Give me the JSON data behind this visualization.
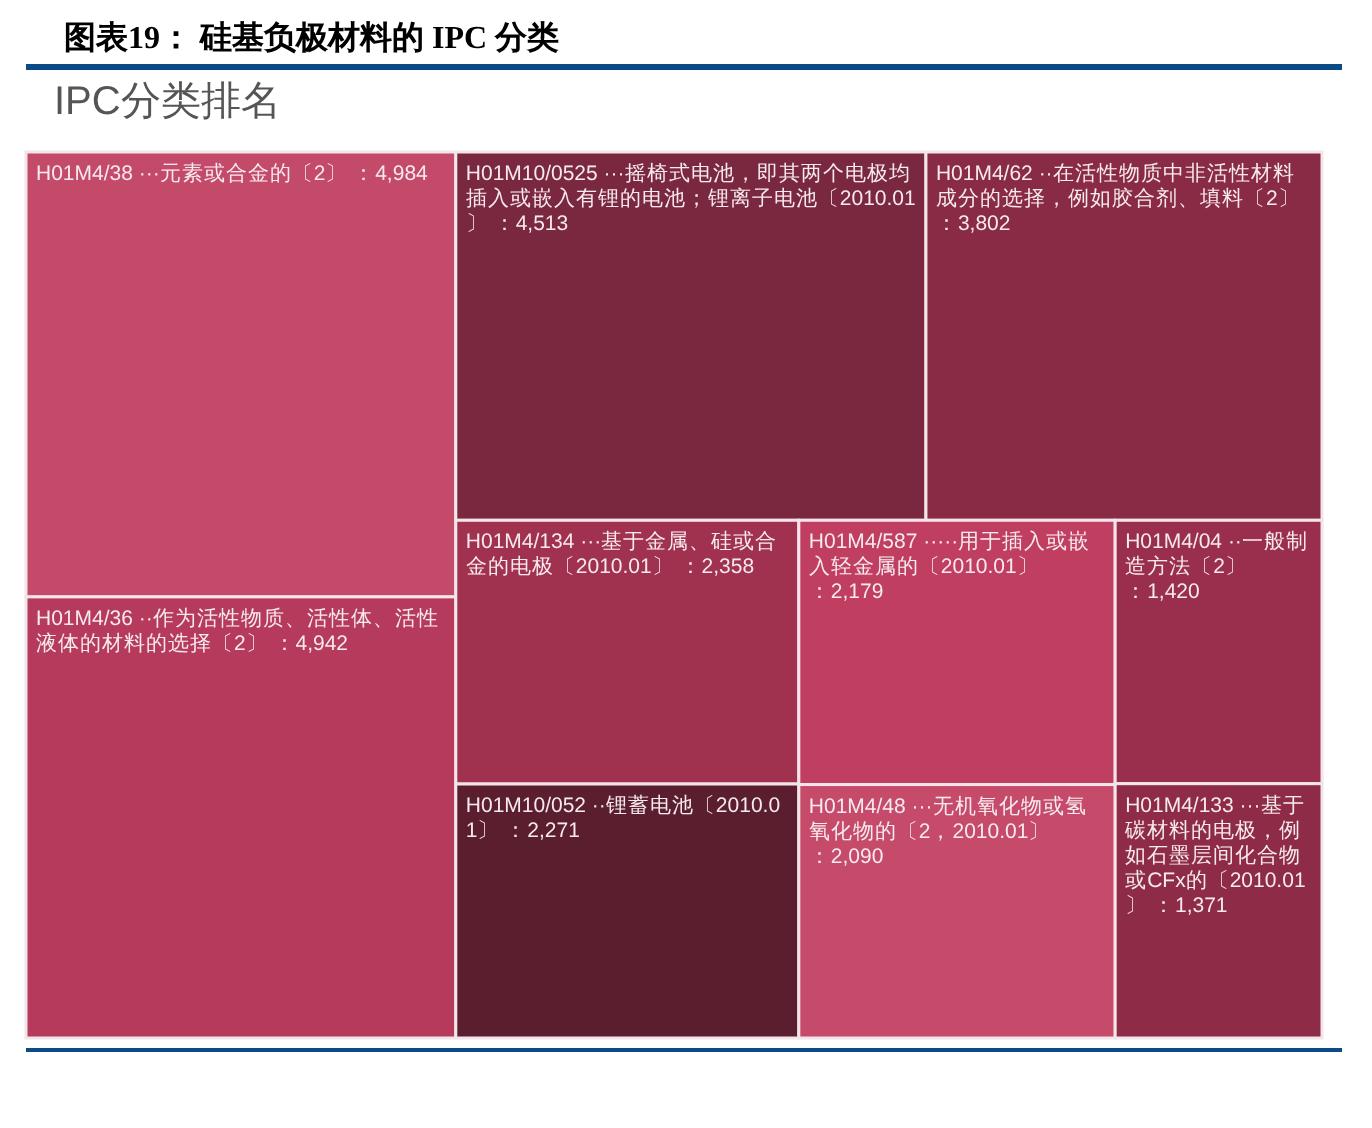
{
  "chart_data": {
    "type": "other",
    "title": "图表19： 硅基负极材料的 IPC 分类",
    "subtitle": "IPC分类排名",
    "categories": [
      "H01M4/38 ···元素或合金的〔2〕",
      "H01M4/36 ··作为活性物质、活性体、活性液体的材料的选择〔2〕",
      "H01M10/0525 ···摇椅式电池，即其两个电极均插入或嵌入有锂的电池；锂离子电池〔2010.01〕",
      "H01M4/62 ··在活性物质中非活性材料成分的选择，例如胶合剂、填料〔2〕",
      "H01M4/134 ···基于金属、硅或合金的电极〔2010.01〕",
      "H01M10/052 ··锂蓄电池〔2010.01〕",
      "H01M4/587 ·····用于插入或嵌入轻金属的〔2010.01〕",
      "H01M4/48 ···无机氧化物或氢氧化物的〔2，2010.01〕",
      "H01M4/04 ··一般制造方法〔2〕",
      "H01M4/133 ···基于碳材料的电极，例如石墨层间化合物或CFx的〔2010.01〕"
    ],
    "values": [
      4984,
      4942,
      4513,
      3802,
      2358,
      2271,
      2179,
      2090,
      1420,
      1371
    ],
    "colors": [
      "#c44a6a",
      "#b53a5c",
      "#7a2740",
      "#8a2b45",
      "#a0314f",
      "#5a1e2e",
      "#c03e60",
      "#c64b6b",
      "#9a2f4d",
      "#8e2c48"
    ],
    "value_labels": [
      "：4,984",
      "：4,942",
      "：4,513",
      "：3,802",
      "：2,358",
      "：2,271",
      "：2,179",
      "：2,090",
      "：1,420",
      "：1,371"
    ]
  }
}
